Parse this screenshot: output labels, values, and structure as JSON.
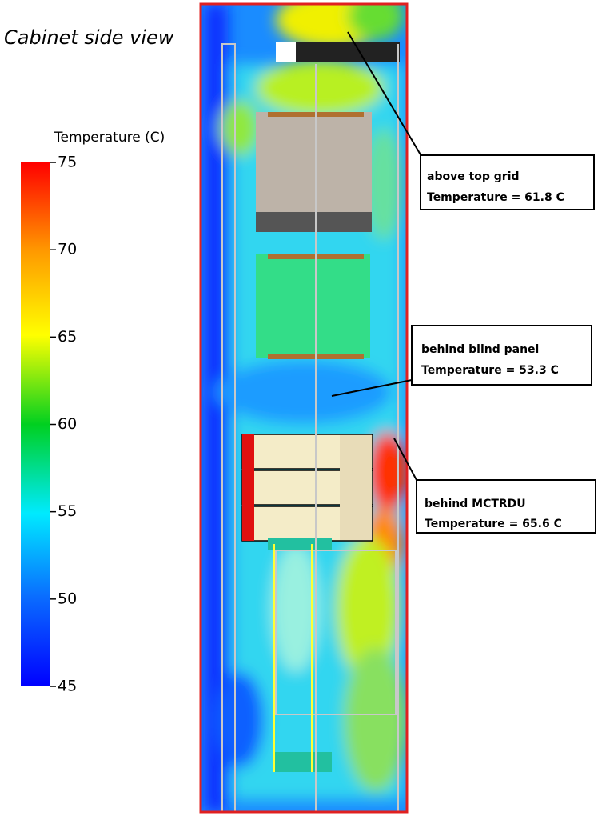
{
  "title": "Cabinet side view",
  "colorbar": {
    "title": "Temperature (C)",
    "range": [
      45,
      75
    ],
    "ticks": [
      45,
      50,
      55,
      60,
      65,
      70,
      75
    ]
  },
  "annotations": [
    {
      "label": "above top grid",
      "reading": "Temperature = 61.8 C"
    },
    {
      "label": "behind blind panel",
      "reading": "Temperature = 53.3 C"
    },
    {
      "label": "behind MCTRDU",
      "reading": "Temperature = 65.6 C"
    }
  ]
}
